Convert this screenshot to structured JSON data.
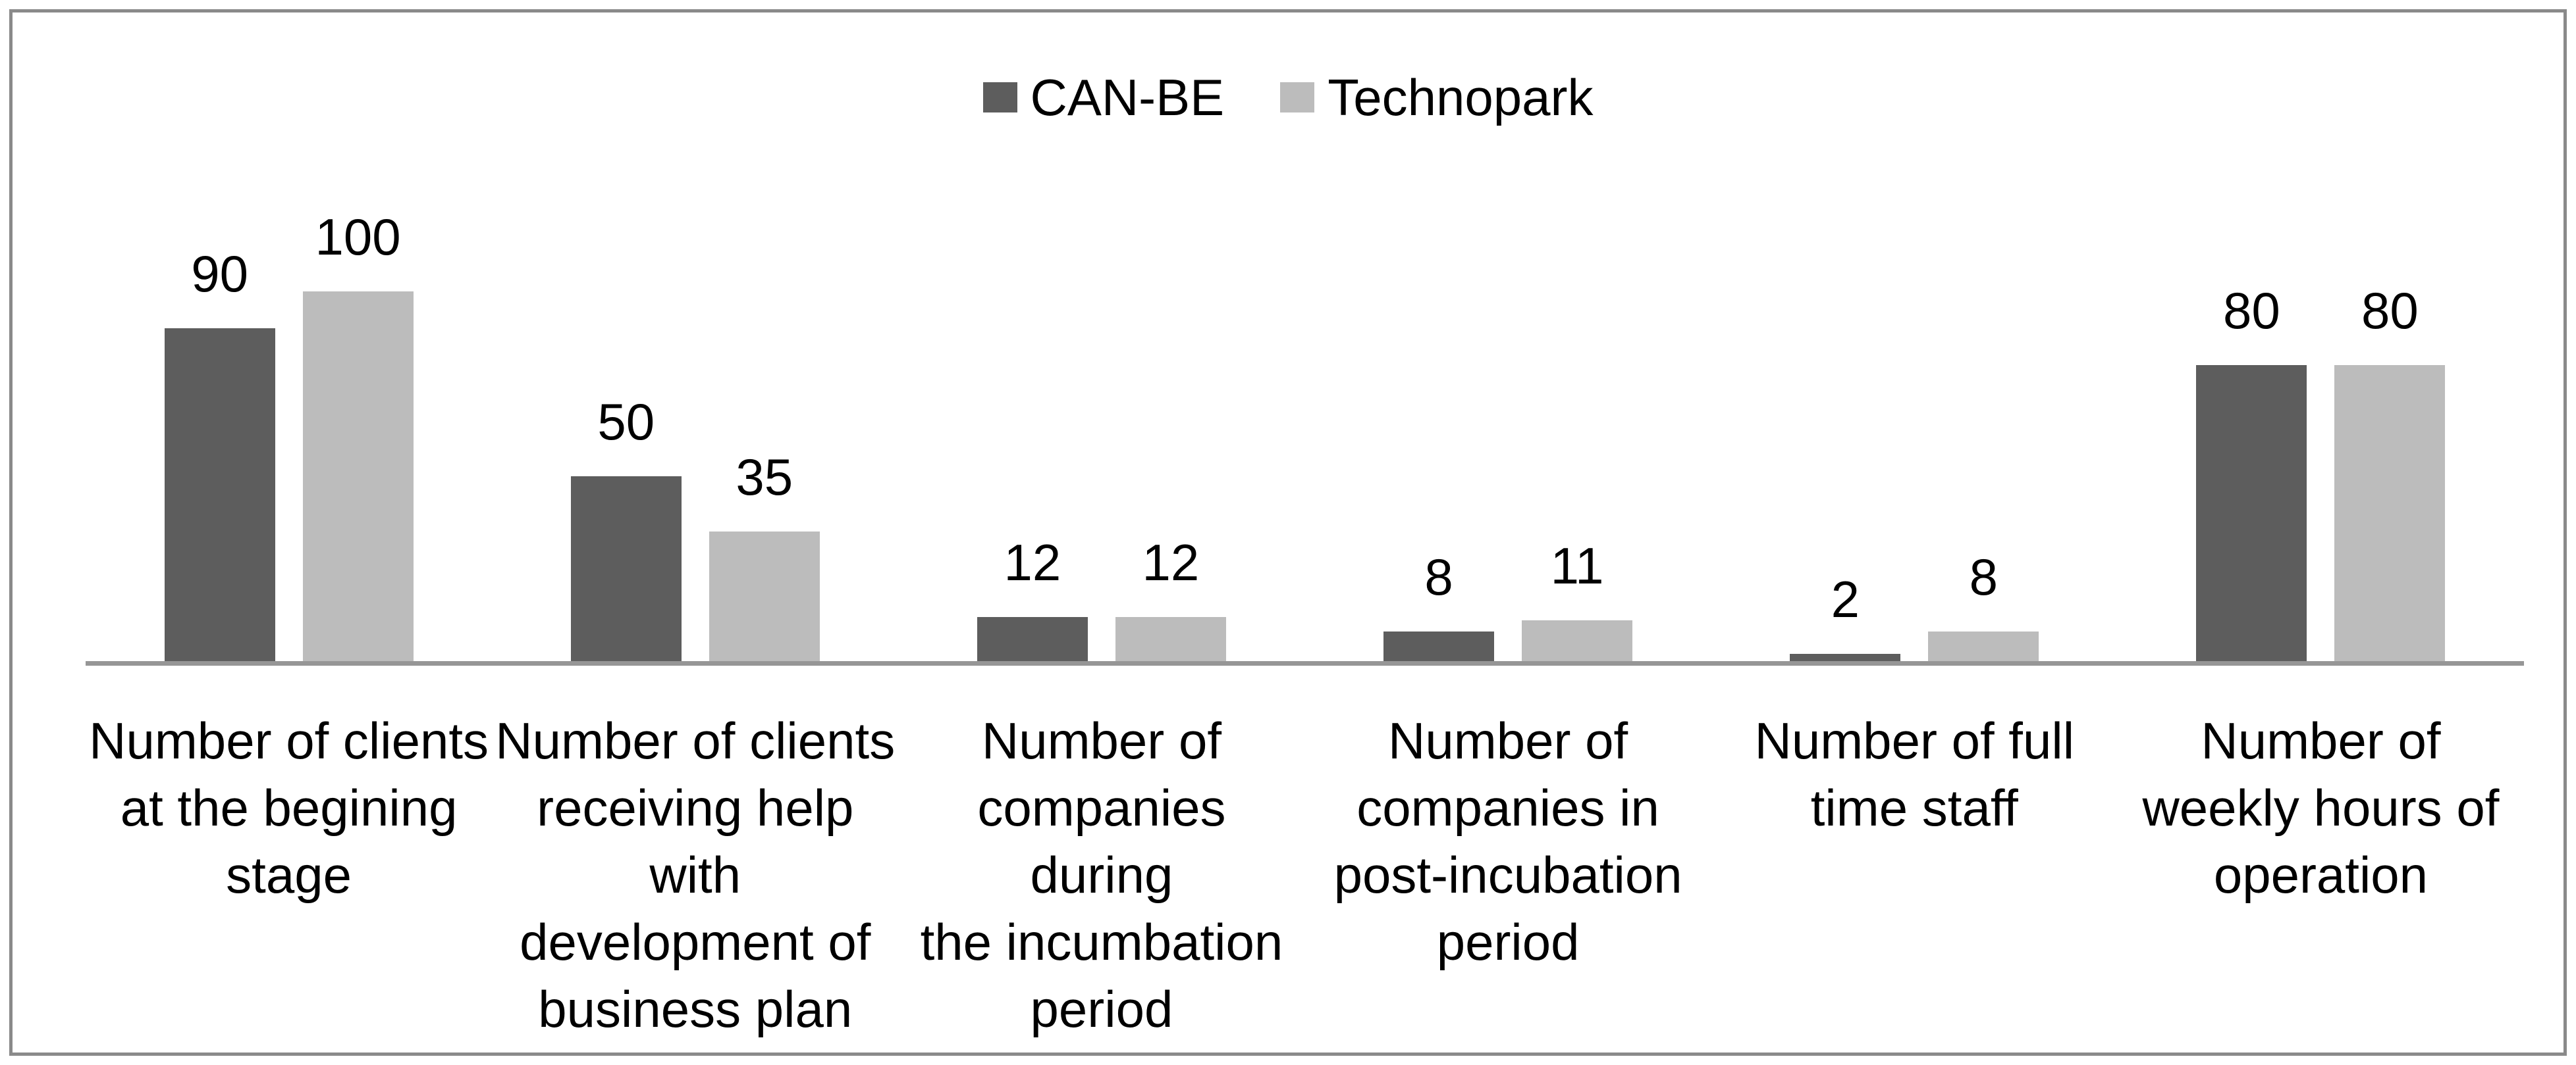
{
  "chart_data": {
    "type": "bar",
    "title": "",
    "legend_position": "top-center",
    "value_labels": "outside-end",
    "gridlines": false,
    "y_axis_visible": false,
    "x_axis_visible": true,
    "ylim": [
      0,
      100
    ],
    "categories": [
      "Number of clients\nat the begining\nstage",
      "Number of clients\nreceiving help\nwith\ndevelopment of\nbusiness plan",
      "Number of\ncompanies during\nthe incumbation\nperiod",
      "Number of\ncompanies in\npost-incubation\nperiod",
      "Number of full\ntime staff",
      "Number of\nweekly hours of\noperation"
    ],
    "series": [
      {
        "name": "CAN-BE",
        "color": "#5d5d5d",
        "values": [
          90,
          50,
          12,
          8,
          2,
          80
        ]
      },
      {
        "name": "Technopark",
        "color": "#bcbcbc",
        "values": [
          100,
          35,
          12,
          11,
          8,
          80
        ]
      }
    ]
  },
  "colors": {
    "frame_border": "#8a8a8a",
    "axis_line": "#969696",
    "text": "#000000",
    "background": "#ffffff"
  }
}
